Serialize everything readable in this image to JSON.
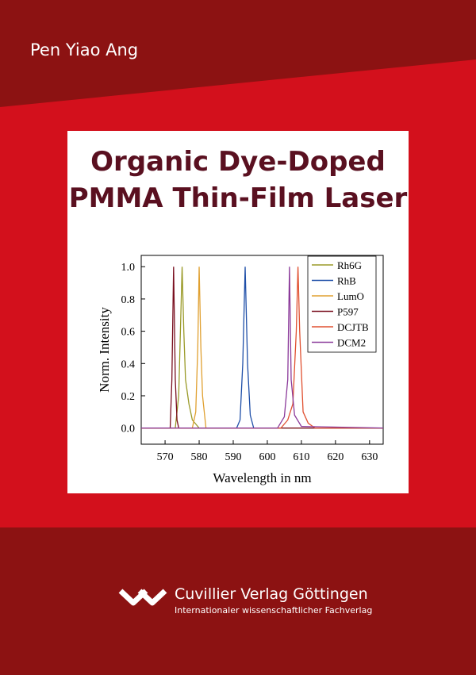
{
  "author": "Pen Yiao Ang",
  "title_lines": [
    "Organic Dye-Doped",
    "PMMA Thin-Film Laser"
  ],
  "publisher": {
    "name": "Cuvillier Verlag Göttingen",
    "tagline": "Internationaler wissenschaftlicher Fachverlag"
  },
  "chart_data": {
    "type": "line",
    "xlabel": "Wavelength in nm",
    "ylabel": "Norm. Intensity",
    "xlim": [
      563,
      634
    ],
    "xticks": [
      570,
      580,
      590,
      600,
      610,
      620,
      630
    ],
    "ylim": [
      -0.1,
      1.07
    ],
    "yticks": [
      {
        "value": 0,
        "label": "0.0"
      },
      0.2,
      0.4,
      0.6,
      0.8,
      {
        "value": 1,
        "label": "1.0"
      }
    ],
    "legend": "upper right",
    "series": [
      {
        "name": "Rh6G",
        "color": "#9a9a28",
        "x": [
          563,
          573,
          574,
          574.5,
          575,
          575.5,
          576,
          577,
          578,
          580,
          634
        ],
        "values": [
          0,
          0,
          0.2,
          0.6,
          1.0,
          0.6,
          0.3,
          0.15,
          0.05,
          0,
          0
        ]
      },
      {
        "name": "RhB",
        "color": "#1f4fa8",
        "x": [
          563,
          591,
          592,
          592.8,
          593.5,
          594.2,
          595,
          596,
          634
        ],
        "values": [
          0,
          0,
          0.05,
          0.4,
          1.0,
          0.4,
          0.08,
          0,
          0
        ]
      },
      {
        "name": "LumO",
        "color": "#e0a030",
        "x": [
          563,
          578,
          579,
          579.6,
          580,
          580.5,
          581,
          582,
          634
        ],
        "values": [
          0,
          0,
          0.1,
          0.5,
          1.0,
          0.5,
          0.2,
          0,
          0
        ]
      },
      {
        "name": "P597",
        "color": "#7a1020",
        "x": [
          563,
          571.5,
          572,
          572.5,
          573,
          573.5,
          574,
          634
        ],
        "values": [
          0,
          0,
          0.3,
          1.0,
          0.3,
          0.05,
          0,
          0
        ]
      },
      {
        "name": "DCJTB",
        "color": "#e05030",
        "x": [
          563,
          604,
          606,
          607.5,
          608.5,
          609,
          609.5,
          610.5,
          612,
          614,
          634
        ],
        "values": [
          0,
          0,
          0.05,
          0.15,
          0.6,
          1.0,
          0.6,
          0.1,
          0.03,
          0,
          0
        ]
      },
      {
        "name": "DCM2",
        "color": "#8b3a9a",
        "x": [
          563,
          603,
          605,
          606,
          606.5,
          607,
          608,
          610,
          634
        ],
        "values": [
          0,
          0,
          0.07,
          0.3,
          1.0,
          0.3,
          0.08,
          0.01,
          0
        ]
      }
    ]
  }
}
